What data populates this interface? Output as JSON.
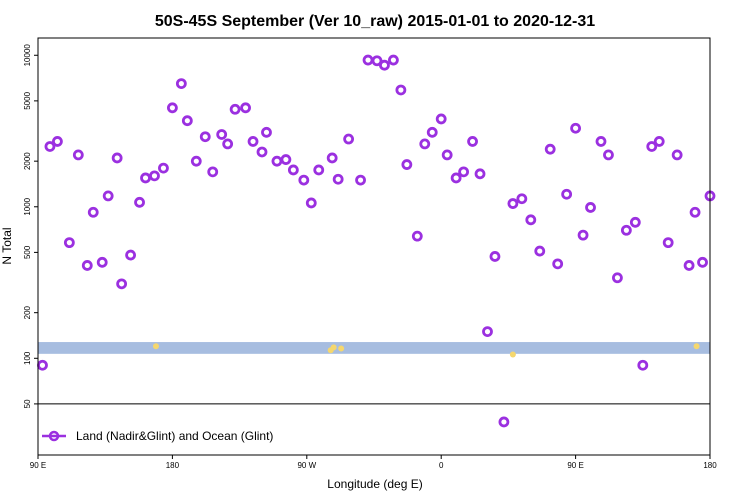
{
  "chart_data": {
    "type": "scatter",
    "title": "50S-45S September (Ver 10_raw)   2015-01-01 to 2020-12-31",
    "xlabel": "Longitude (deg E)",
    "ylabel": "N Total",
    "y_scale": "log",
    "ylim": [
      23,
      13000
    ],
    "x_ticks": [
      {
        "pos": 0,
        "label": "90 E"
      },
      {
        "pos": 90,
        "label": "180"
      },
      {
        "pos": 180,
        "label": "90 W"
      },
      {
        "pos": 270,
        "label": "0"
      },
      {
        "pos": 360,
        "label": "90 E"
      },
      {
        "pos": 450,
        "label": "180"
      }
    ],
    "y_ticks": [
      50,
      100,
      200,
      500,
      1000,
      2000,
      5000,
      10000
    ],
    "legend": {
      "position": "bottom-left",
      "entries": [
        "Land (Nadir&Glint) and Ocean (Glint)"
      ]
    },
    "colors": {
      "series": "#9b30e0",
      "band": "#a7bde0",
      "markers_yellow": "#f5d76e"
    },
    "band": {
      "y_min": 107,
      "y_max": 128
    },
    "series": [
      {
        "name": "Land (Nadir&Glint) and Ocean (Glint)",
        "x": [
          3,
          8,
          13,
          21,
          27,
          33,
          37,
          43,
          47,
          53,
          56,
          62,
          68,
          72,
          78,
          84,
          90,
          96,
          100,
          106,
          112,
          117,
          123,
          127,
          132,
          139,
          144,
          150,
          153,
          160,
          166,
          171,
          178,
          183,
          188,
          197,
          201,
          208,
          216,
          221,
          227,
          232,
          238,
          243,
          247,
          254,
          259,
          264,
          270,
          274,
          280,
          285,
          291,
          296,
          301,
          306,
          312,
          318,
          324,
          330,
          336,
          343,
          348,
          354,
          360,
          365,
          370,
          377,
          382,
          388,
          394,
          400,
          405,
          411,
          416,
          422,
          428,
          436,
          440,
          445,
          450
        ],
        "y": [
          90,
          2500,
          2700,
          580,
          2200,
          410,
          920,
          430,
          1180,
          2100,
          310,
          480,
          1070,
          1550,
          1600,
          1800,
          4500,
          6500,
          3700,
          2000,
          2900,
          1700,
          3000,
          2600,
          4400,
          4500,
          2700,
          2300,
          3100,
          2000,
          2050,
          1750,
          1500,
          1060,
          1750,
          2100,
          1520,
          2800,
          1500,
          9300,
          9200,
          8600,
          9300,
          5900,
          1900,
          640,
          2600,
          3100,
          3800,
          2200,
          1550,
          1700,
          2700,
          1650,
          150,
          470,
          38,
          1050,
          1130,
          820,
          510,
          2400,
          420,
          1210,
          3300,
          650,
          990,
          2700,
          2200,
          340,
          700,
          790,
          90,
          2500,
          2700,
          580,
          2200,
          410,
          920,
          430,
          1180
        ]
      }
    ],
    "yellow_markers": [
      {
        "x": 79,
        "y": 120
      },
      {
        "x": 198,
        "y": 118
      },
      {
        "x": 196,
        "y": 113
      },
      {
        "x": 203,
        "y": 116
      },
      {
        "x": 318,
        "y": 106
      },
      {
        "x": 441,
        "y": 120
      }
    ]
  }
}
